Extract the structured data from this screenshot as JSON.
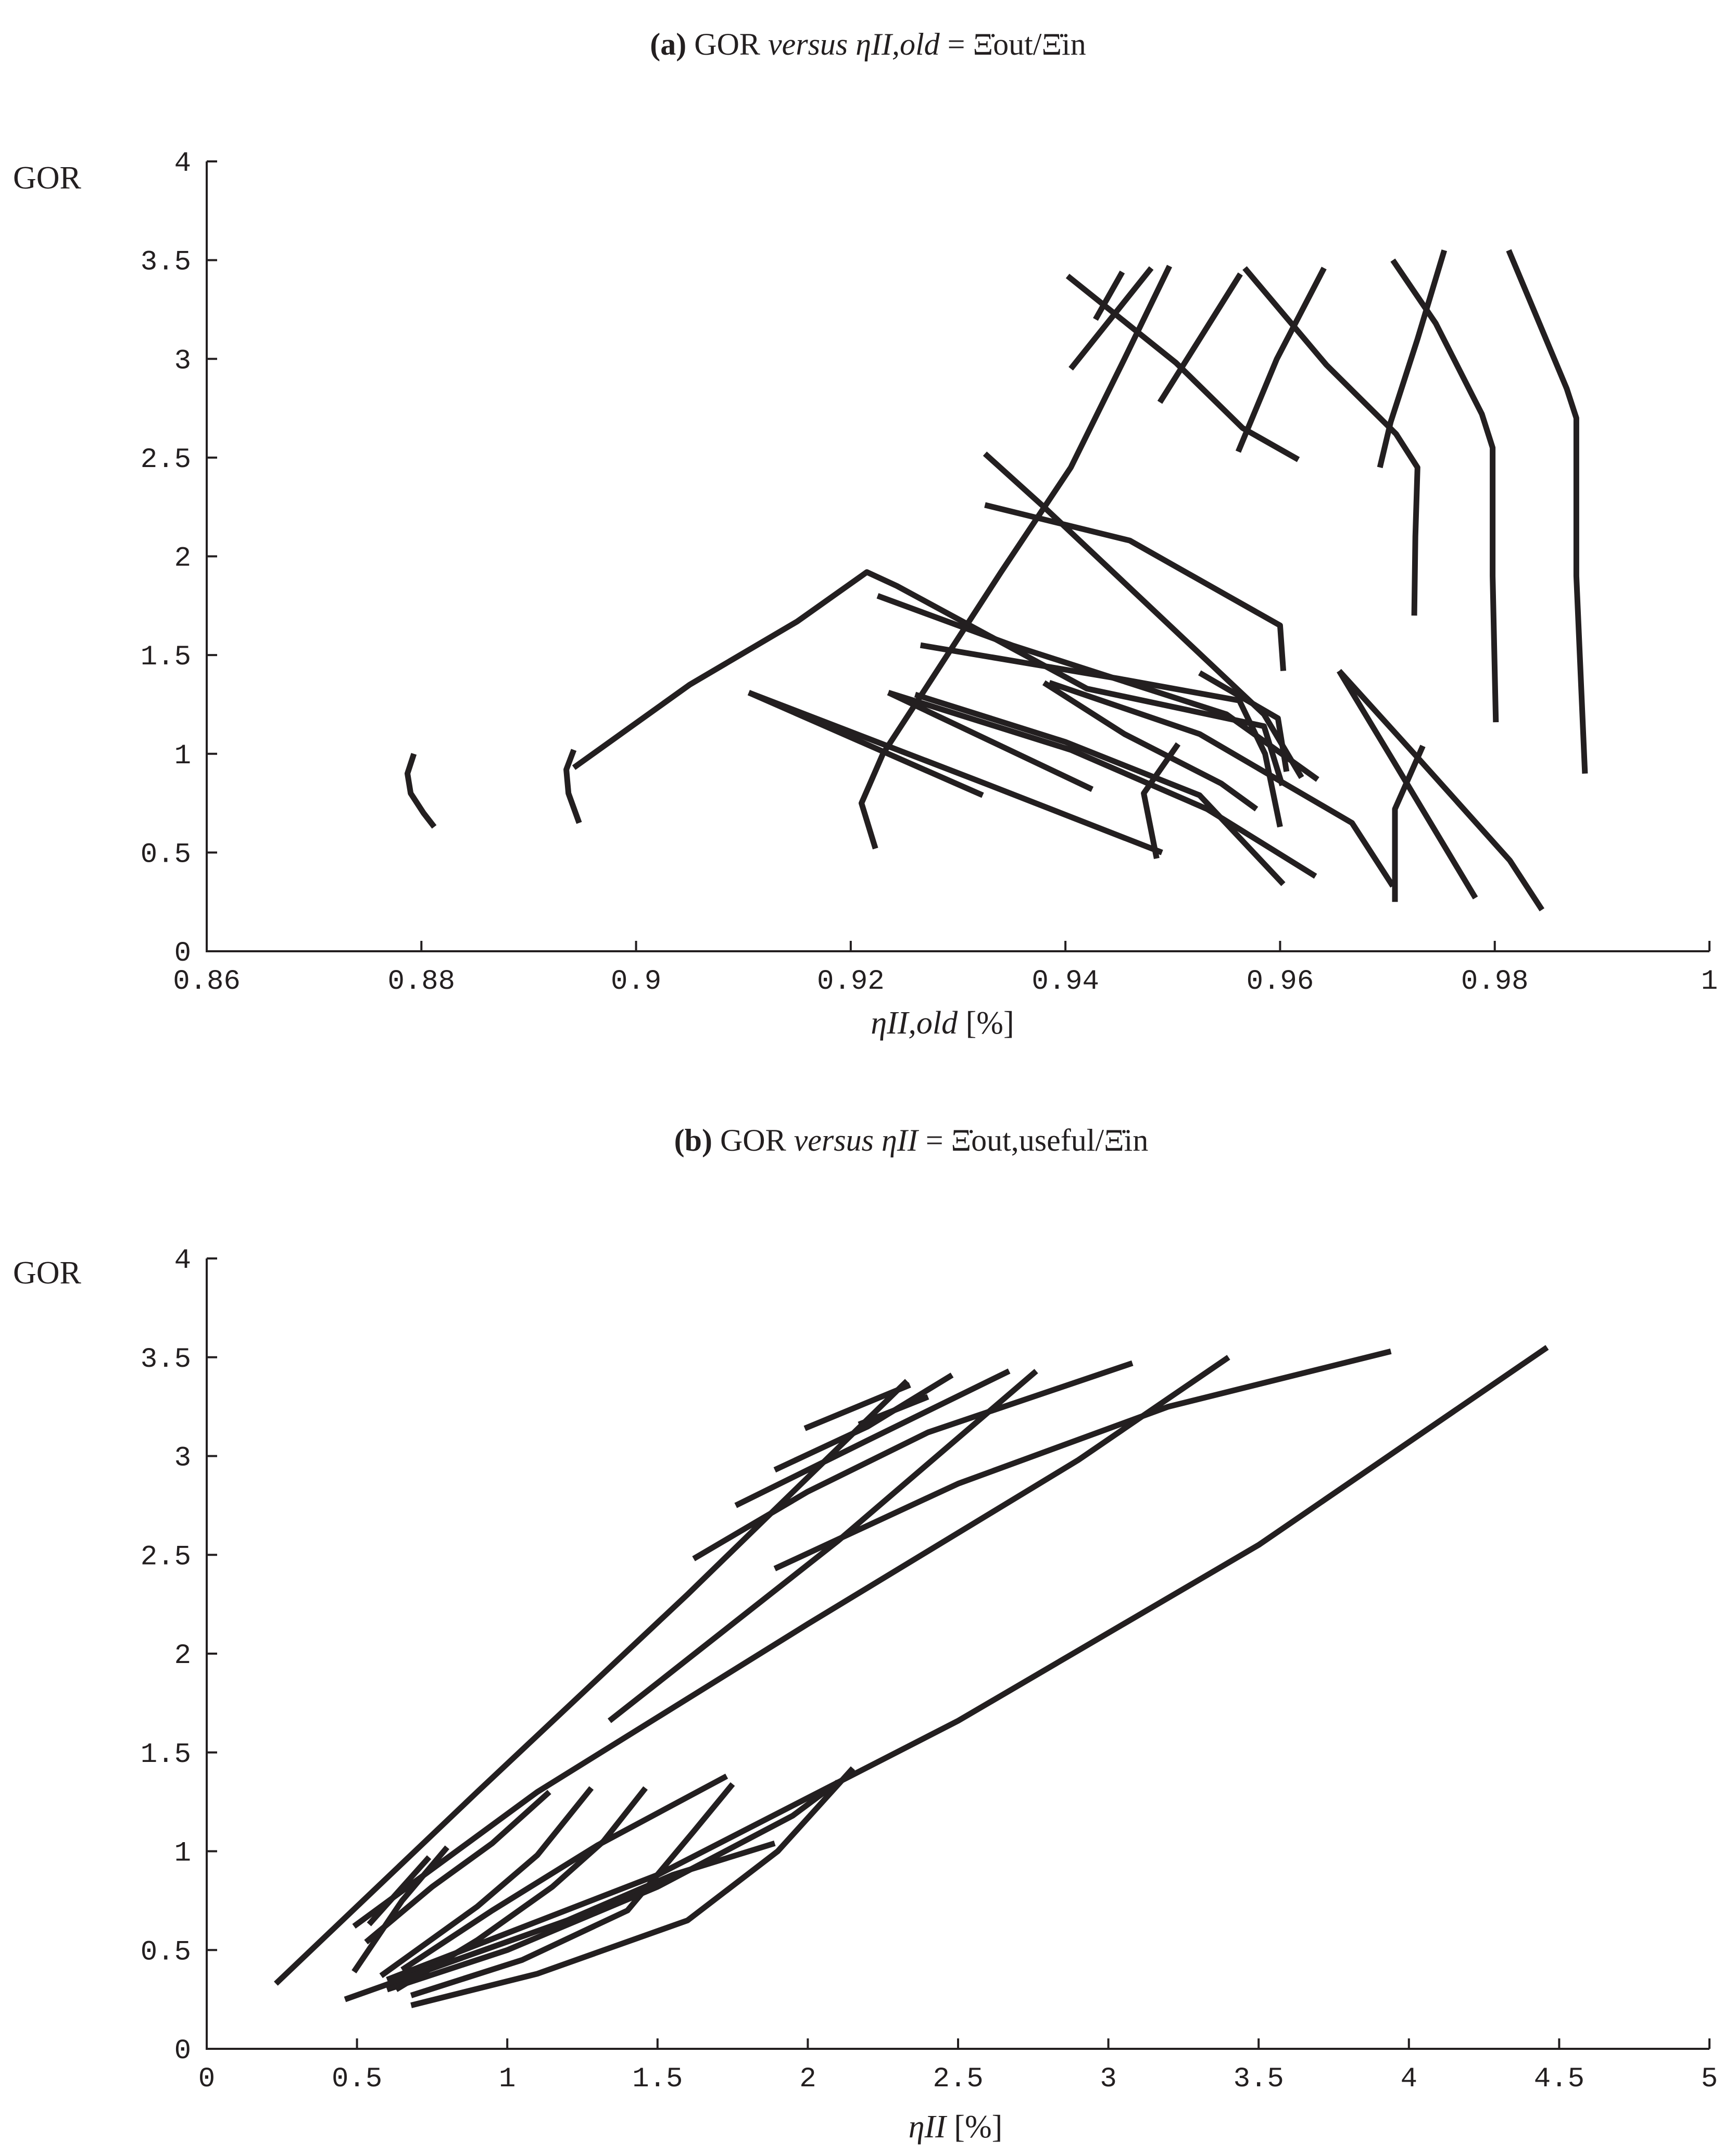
{
  "chart_data": [
    {
      "type": "line",
      "title": "(a) GOR versus ηII,old = Ξ̇out/Ξ̇in",
      "title_parts": {
        "tag": "(a)",
        "lead": "GOR",
        "versus": "versus",
        "lhs": "ηII,old",
        "eq": "=",
        "rhs": "Ξ̇out/Ξ̇in"
      },
      "xlabel": "ηII,old [%]",
      "xlabel_parts": {
        "sym": "ηII,old",
        "unit": "[%]"
      },
      "ylabel": "GOR",
      "xlim": [
        0.86,
        1.0
      ],
      "ylim": [
        0,
        4
      ],
      "xticks": [
        0.86,
        0.88,
        0.9,
        0.92,
        0.94,
        0.96,
        0.98,
        1
      ],
      "xtick_labels": [
        "0.86",
        "0.88",
        "0.9",
        "0.92",
        "0.94",
        "0.96",
        "0.98",
        "1"
      ],
      "yticks": [
        0,
        0.5,
        1,
        1.5,
        2,
        2.5,
        3,
        3.5,
        4
      ],
      "ytick_labels": [
        "0",
        "0.5",
        "1",
        "1.5",
        "2",
        "2.5",
        "3",
        "3.5",
        "4"
      ],
      "series": [
        {
          "points": [
            [
              0.8793,
              1.0
            ],
            [
              0.8787,
              0.9
            ],
            [
              0.879,
              0.8
            ],
            [
              0.8802,
              0.7
            ],
            [
              0.8812,
              0.63
            ]
          ]
        },
        {
          "points": [
            [
              0.8942,
              1.02
            ],
            [
              0.8935,
              0.92
            ],
            [
              0.8937,
              0.8
            ],
            [
              0.8947,
              0.65
            ]
          ]
        },
        {
          "points": [
            [
              0.8942,
              0.93
            ],
            [
              0.905,
              1.35
            ],
            [
              0.915,
              1.67
            ],
            [
              0.9215,
              1.92
            ],
            [
              0.9243,
              1.85
            ],
            [
              0.942,
              1.33
            ],
            [
              0.9585,
              1.14
            ],
            [
              0.9602,
              0.84
            ]
          ]
        },
        {
          "points": [
            [
              0.9223,
              0.52
            ],
            [
              0.921,
              0.75
            ],
            [
              0.923,
              1.0
            ],
            [
              0.9272,
              1.35
            ],
            [
              0.934,
              1.92
            ],
            [
              0.9405,
              2.45
            ],
            [
              0.9455,
              3.0
            ],
            [
              0.9497,
              3.47
            ]
          ]
        },
        {
          "points": [
            [
              0.9428,
              3.2
            ],
            [
              0.9453,
              3.44
            ]
          ]
        },
        {
          "points": [
            [
              0.948,
              3.46
            ],
            [
              0.9405,
              2.95
            ]
          ]
        },
        {
          "points": [
            [
              0.9402,
              3.42
            ],
            [
              0.9503,
              2.98
            ],
            [
              0.9565,
              2.65
            ],
            [
              0.9617,
              2.49
            ]
          ]
        },
        {
          "points": [
            [
              0.9563,
              3.43
            ],
            [
              0.9525,
              3.1
            ],
            [
              0.9488,
              2.78
            ]
          ]
        },
        {
          "points": [
            [
              0.9567,
              3.46
            ],
            [
              0.9643,
              2.97
            ],
            [
              0.9708,
              2.62
            ],
            [
              0.9728,
              2.45
            ],
            [
              0.9726,
              2.1
            ],
            [
              0.9725,
              1.7
            ]
          ]
        },
        {
          "points": [
            [
              0.9641,
              3.46
            ],
            [
              0.9597,
              3.0
            ],
            [
              0.9561,
              2.53
            ]
          ]
        },
        {
          "points": [
            [
              0.9753,
              3.55
            ],
            [
              0.9728,
              3.1
            ],
            [
              0.9703,
              2.68
            ],
            [
              0.9693,
              2.45
            ]
          ]
        },
        {
          "points": [
            [
              0.9705,
              3.5
            ],
            [
              0.9745,
              3.18
            ],
            [
              0.9788,
              2.72
            ],
            [
              0.9798,
              2.55
            ],
            [
              0.9798,
              1.9
            ],
            [
              0.9801,
              1.16
            ]
          ]
        },
        {
          "points": [
            [
              0.9813,
              3.55
            ],
            [
              0.984,
              3.2
            ],
            [
              0.9867,
              2.85
            ],
            [
              0.9876,
              2.7
            ],
            [
              0.9876,
              1.9
            ],
            [
              0.9884,
              0.9
            ]
          ]
        },
        {
          "points": [
            [
              0.9325,
              2.52
            ],
            [
              0.938,
              2.25
            ],
            [
              0.9585,
              1.2
            ],
            [
              0.962,
              0.88
            ]
          ]
        },
        {
          "points": [
            [
              0.9325,
              2.26
            ],
            [
              0.946,
              2.08
            ],
            [
              0.96,
              1.65
            ],
            [
              0.9603,
              1.42
            ]
          ]
        },
        {
          "points": [
            [
              0.9225,
              1.8
            ],
            [
              0.935,
              1.55
            ],
            [
              0.955,
              1.2
            ],
            [
              0.9635,
              0.87
            ]
          ]
        },
        {
          "points": [
            [
              0.9265,
              1.55
            ],
            [
              0.945,
              1.38
            ],
            [
              0.9562,
              1.27
            ],
            [
              0.9586,
              1.0
            ],
            [
              0.96,
              0.63
            ]
          ]
        },
        {
          "points": [
            [
              0.9105,
              1.31
            ],
            [
              0.9323,
              0.79
            ]
          ]
        },
        {
          "points": [
            [
              0.9105,
              1.31
            ],
            [
              0.9325,
              0.85
            ],
            [
              0.949,
              0.5
            ]
          ]
        },
        {
          "points": [
            [
              0.9235,
              1.31
            ],
            [
              0.9425,
              0.82
            ]
          ]
        },
        {
          "points": [
            [
              0.9235,
              1.31
            ],
            [
              0.9405,
              1.02
            ],
            [
              0.9532,
              0.72
            ],
            [
              0.9633,
              0.38
            ]
          ]
        },
        {
          "points": [
            [
              0.926,
              1.3
            ],
            [
              0.94,
              1.06
            ],
            [
              0.9525,
              0.79
            ],
            [
              0.9603,
              0.34
            ]
          ]
        },
        {
          "points": [
            [
              0.9385,
              1.36
            ],
            [
              0.9525,
              1.1
            ],
            [
              0.9667,
              0.65
            ],
            [
              0.9705,
              0.33
            ]
          ]
        },
        {
          "points": [
            [
              0.938,
              1.36
            ],
            [
              0.9455,
              1.1
            ],
            [
              0.9545,
              0.85
            ],
            [
              0.9578,
              0.72
            ]
          ]
        },
        {
          "points": [
            [
              0.9505,
              1.05
            ],
            [
              0.9473,
              0.8
            ],
            [
              0.9485,
              0.47
            ]
          ]
        },
        {
          "points": [
            [
              0.9525,
              1.41
            ],
            [
              0.9598,
              1.18
            ],
            [
              0.9606,
              0.91
            ]
          ]
        },
        {
          "points": [
            [
              0.9655,
              1.42
            ],
            [
              0.9706,
              0.96
            ],
            [
              0.9782,
              0.27
            ]
          ]
        },
        {
          "points": [
            [
              0.9655,
              1.42
            ],
            [
              0.9725,
              1.0
            ],
            [
              0.9814,
              0.46
            ],
            [
              0.9844,
              0.21
            ]
          ]
        },
        {
          "points": [
            [
              0.9733,
              1.04
            ],
            [
              0.9707,
              0.72
            ],
            [
              0.9707,
              0.25
            ]
          ]
        }
      ]
    },
    {
      "type": "line",
      "title": "(b) GOR versus ηII = Ξ̇out,useful/Ξ̇in",
      "title_parts": {
        "tag": "(b)",
        "lead": "GOR",
        "versus": "versus",
        "lhs": "ηII",
        "eq": "=",
        "rhs": "Ξ̇out,useful/Ξ̇in"
      },
      "xlabel": "ηII [%]",
      "xlabel_parts": {
        "sym": "ηII",
        "unit": "[%]"
      },
      "ylabel": "GOR",
      "xlim": [
        0,
        5
      ],
      "ylim": [
        0,
        4
      ],
      "xticks": [
        0,
        0.5,
        1,
        1.5,
        2,
        2.5,
        3,
        3.5,
        4,
        4.5,
        5
      ],
      "xtick_labels": [
        "0",
        "0.5",
        "1",
        "1.5",
        "2",
        "2.5",
        "3",
        "3.5",
        "4",
        "4.5",
        "5"
      ],
      "yticks": [
        0,
        0.5,
        1,
        1.5,
        2,
        2.5,
        3,
        3.5,
        4
      ],
      "ytick_labels": [
        "0",
        "0.5",
        "1",
        "1.5",
        "2",
        "2.5",
        "3",
        "3.5",
        "4"
      ],
      "series": [
        {
          "points": [
            [
              0.23,
              0.33
            ],
            [
              0.9,
              1.3
            ],
            [
              1.6,
              2.3
            ],
            [
              2.33,
              3.38
            ]
          ]
        },
        {
          "points": [
            [
              1.34,
              1.66
            ],
            [
              2.1,
              2.57
            ],
            [
              2.76,
              3.43
            ]
          ]
        },
        {
          "points": [
            [
              0.49,
              0.62
            ],
            [
              1.1,
              1.3
            ],
            [
              2.0,
              2.15
            ],
            [
              2.9,
              2.98
            ],
            [
              3.4,
              3.5
            ]
          ]
        },
        {
          "points": [
            [
              0.6,
              0.35
            ],
            [
              1.5,
              0.88
            ],
            [
              2.5,
              1.66
            ],
            [
              3.5,
              2.55
            ],
            [
              4.46,
              3.55
            ]
          ]
        },
        {
          "points": [
            [
              1.62,
              2.48
            ],
            [
              2.0,
              2.82
            ],
            [
              2.4,
              3.12
            ],
            [
              3.08,
              3.47
            ]
          ]
        },
        {
          "points": [
            [
              1.76,
              2.75
            ],
            [
              2.2,
              3.08
            ],
            [
              2.67,
              3.43
            ]
          ]
        },
        {
          "points": [
            [
              1.89,
              2.93
            ],
            [
              2.2,
              3.15
            ],
            [
              2.48,
              3.41
            ]
          ]
        },
        {
          "points": [
            [
              1.99,
              3.14
            ],
            [
              2.34,
              3.36
            ]
          ]
        },
        {
          "points": [
            [
              1.89,
              2.43
            ],
            [
              2.5,
              2.86
            ],
            [
              3.2,
              3.25
            ],
            [
              3.94,
              3.53
            ]
          ]
        },
        {
          "points": [
            [
              2.17,
              3.16
            ],
            [
              2.4,
              3.3
            ]
          ]
        },
        {
          "points": [
            [
              0.54,
              0.63
            ],
            [
              0.74,
              0.97
            ]
          ]
        },
        {
          "points": [
            [
              0.49,
              0.39
            ],
            [
              0.65,
              0.75
            ],
            [
              0.8,
              1.02
            ]
          ]
        },
        {
          "points": [
            [
              0.53,
              0.54
            ],
            [
              0.75,
              0.82
            ],
            [
              0.95,
              1.04
            ],
            [
              1.14,
              1.3
            ]
          ]
        },
        {
          "points": [
            [
              0.58,
              0.37
            ],
            [
              0.9,
              0.72
            ],
            [
              1.1,
              0.98
            ],
            [
              1.28,
              1.32
            ]
          ]
        },
        {
          "points": [
            [
              0.63,
              0.3
            ],
            [
              0.9,
              0.55
            ],
            [
              1.15,
              0.82
            ],
            [
              1.32,
              1.05
            ],
            [
              1.46,
              1.32
            ]
          ]
        },
        {
          "points": [
            [
              0.65,
              0.4
            ],
            [
              0.95,
              0.7
            ],
            [
              1.3,
              1.03
            ],
            [
              1.73,
              1.38
            ]
          ]
        },
        {
          "points": [
            [
              0.68,
              0.27
            ],
            [
              1.05,
              0.45
            ],
            [
              1.4,
              0.7
            ],
            [
              1.62,
              1.1
            ],
            [
              1.75,
              1.34
            ]
          ]
        },
        {
          "points": [
            [
              0.46,
              0.25
            ],
            [
              1.2,
              0.65
            ],
            [
              1.55,
              0.88
            ],
            [
              1.89,
              1.04
            ]
          ]
        },
        {
          "points": [
            [
              0.68,
              0.22
            ],
            [
              1.1,
              0.38
            ],
            [
              1.6,
              0.65
            ],
            [
              1.9,
              1.0
            ],
            [
              2.15,
              1.42
            ]
          ]
        },
        {
          "points": [
            [
              0.6,
              0.3
            ],
            [
              1.0,
              0.5
            ],
            [
              1.5,
              0.82
            ],
            [
              1.95,
              1.18
            ],
            [
              2.1,
              1.35
            ]
          ]
        }
      ]
    }
  ]
}
